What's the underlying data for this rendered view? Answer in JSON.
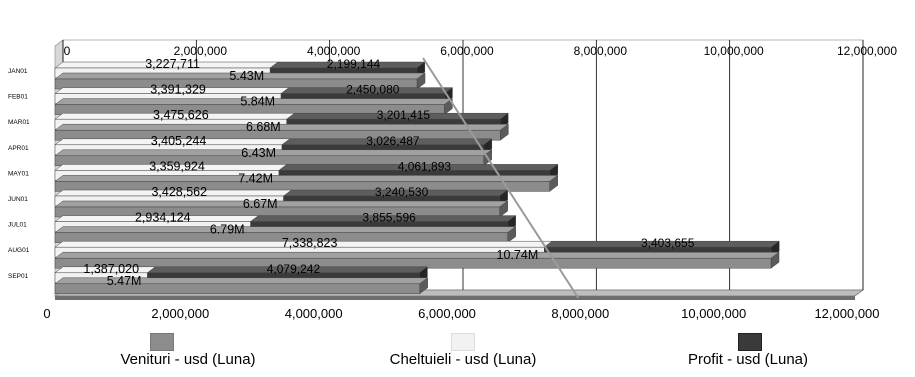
{
  "chart_data": {
    "type": "bar",
    "orientation": "horizontal",
    "stacked_top_bar": [
      "Venituri - usd (Luna)",
      "Profit - usd (Luna)"
    ],
    "categories": [
      "JAN01",
      "FEB01",
      "MAR01",
      "APR01",
      "MAY01",
      "JUN01",
      "JUL01",
      "AUG01",
      "SEP01"
    ],
    "series": [
      {
        "name": "Venituri - usd (Luna)",
        "color": "#8c8c8c",
        "values": [
          5430000,
          5840000,
          6680000,
          6430000,
          7420000,
          6670000,
          6790000,
          10740000,
          5470000
        ],
        "labels": [
          "5.43M",
          "5.84M",
          "6.68M",
          "6.43M",
          "7.42M",
          "6.67M",
          "6.79M",
          "10.74M",
          "5.47M"
        ]
      },
      {
        "name": "Cheltuieli - usd (Luna)",
        "color": "#f2f2f2",
        "values": [
          3227711,
          3391329,
          3475626,
          3405244,
          3359924,
          3428562,
          2934124,
          7338823,
          1387020
        ],
        "labels": [
          "3,227,711",
          "3,391,329",
          "3,475,626",
          "3,405,244",
          "3,359,924",
          "3,428,562",
          "2,934,124",
          "7,338,823",
          "1,387,020"
        ]
      },
      {
        "name": "Profit - usd (Luna)",
        "color": "#3a3a3a",
        "values": [
          2199144,
          2450080,
          3201415,
          3026487,
          4061893,
          3240530,
          3855596,
          3403655,
          4079242
        ],
        "labels": [
          "2,199,144",
          "2,450,080",
          "3,201,415",
          "3,026,487",
          "4,061,893",
          "3,240,530",
          "3,855,596",
          "3,403,655",
          "4,079,242"
        ]
      }
    ],
    "xlim": [
      0,
      12000000
    ],
    "xticks": [
      "0",
      "2,000,000",
      "4,000,000",
      "6,000,000",
      "8,000,000",
      "10,000,000",
      "12,000,000"
    ],
    "grid": true,
    "legend_position": "bottom"
  }
}
